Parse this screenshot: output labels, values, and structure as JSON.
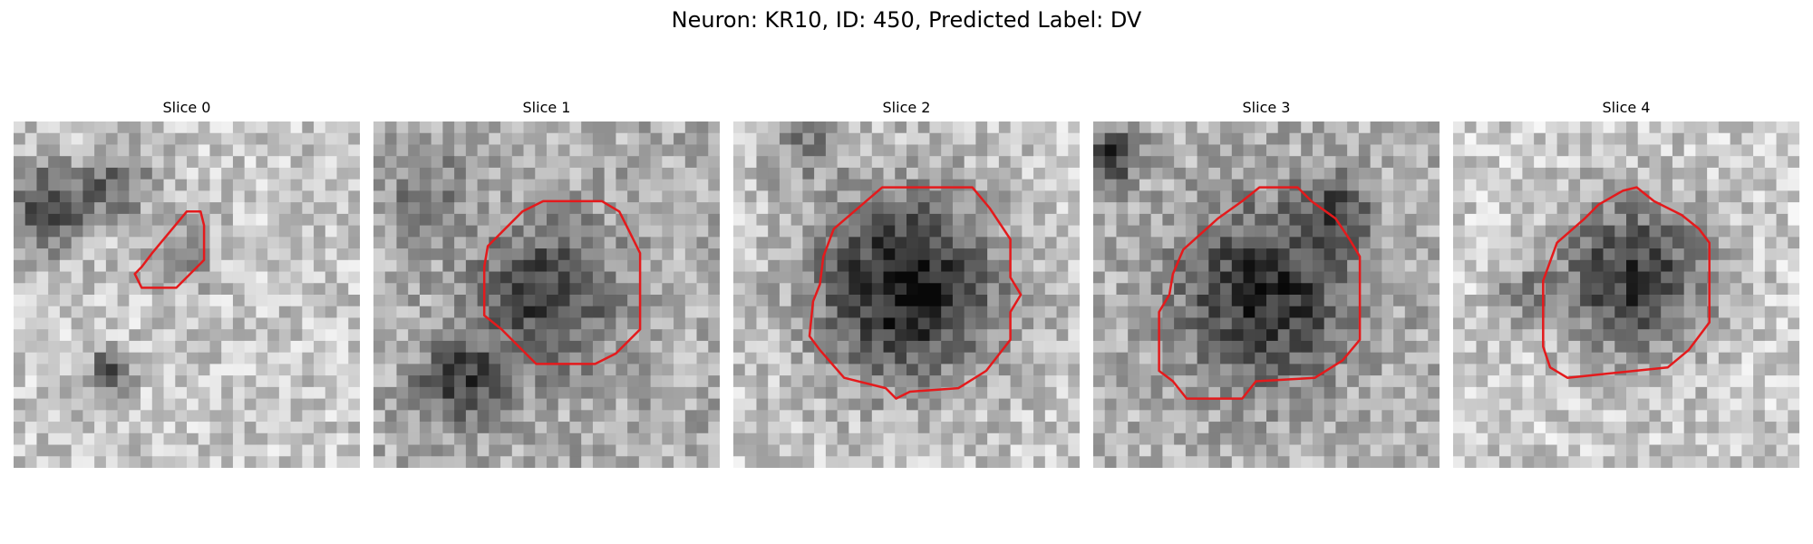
{
  "figure": {
    "title": "Neuron: KR10, ID: 450, Predicted Label: DV"
  },
  "panels": [
    {
      "title": "Slice 0"
    },
    {
      "title": "Slice 1"
    },
    {
      "title": "Slice 2"
    },
    {
      "title": "Slice 3"
    },
    {
      "title": "Slice 4"
    }
  ],
  "colors": {
    "contour": "#e41a1c",
    "background": "#ffffff"
  }
}
